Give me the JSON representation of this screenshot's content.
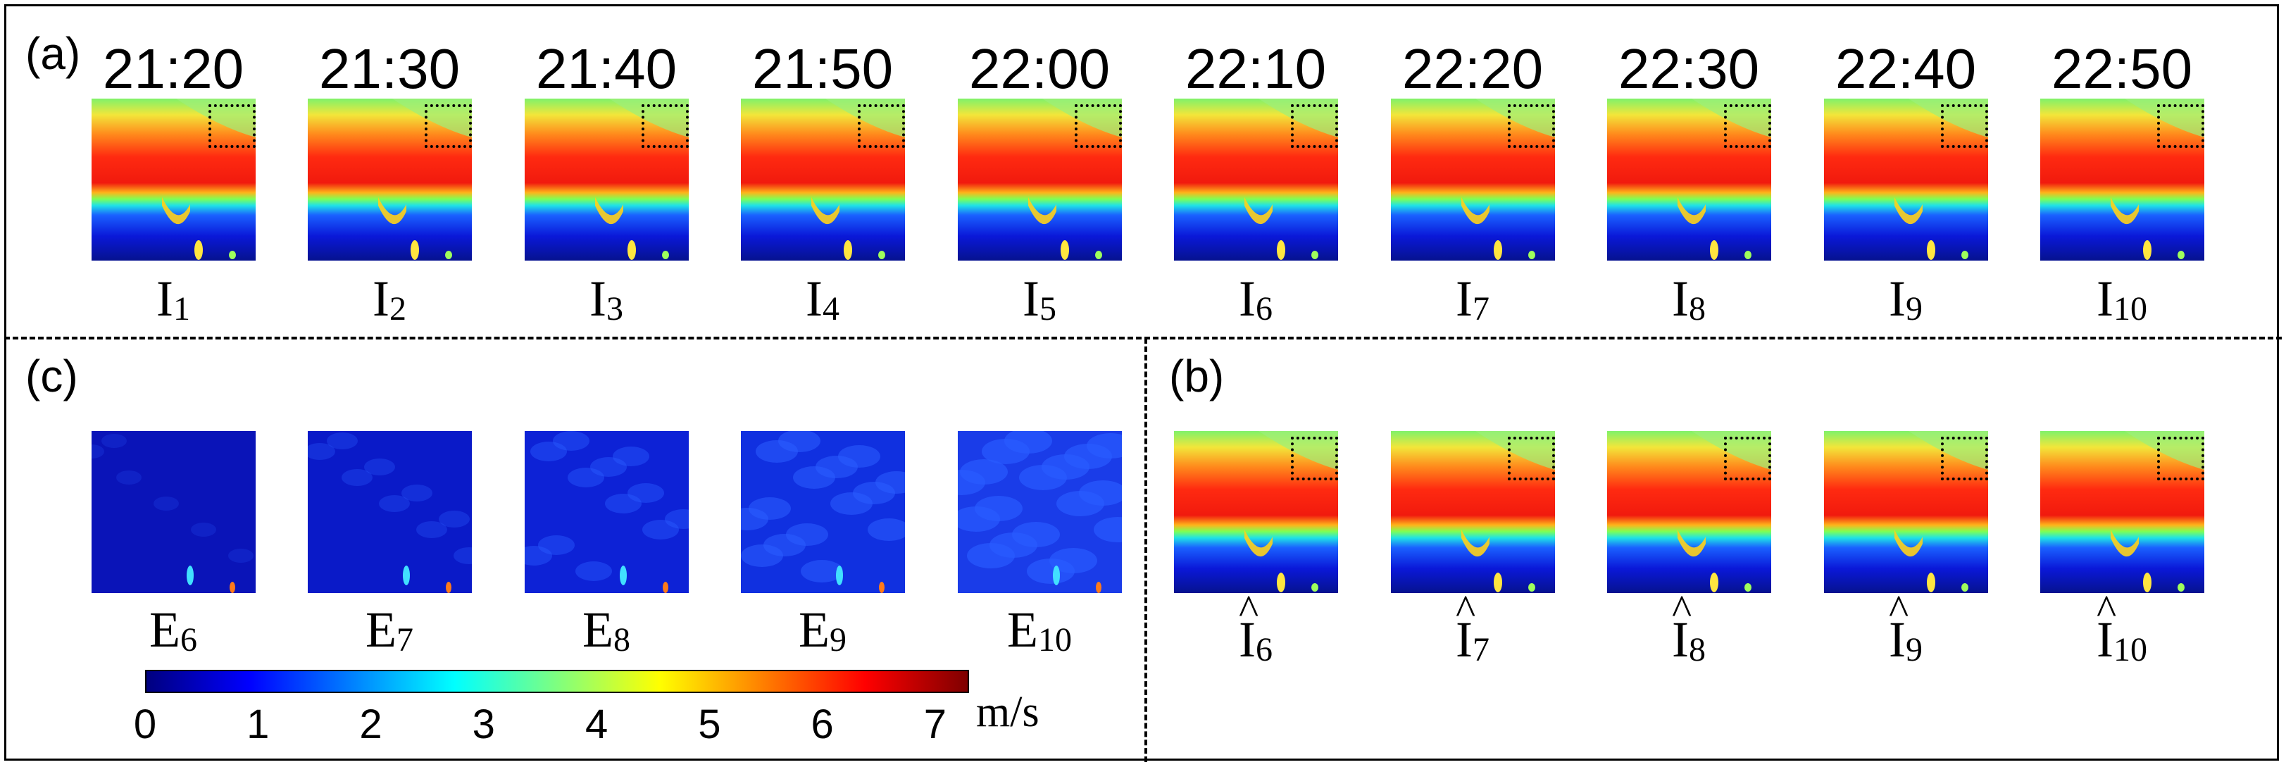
{
  "panels": {
    "a": "(a)",
    "b": "(b)",
    "c": "(c)"
  },
  "times": [
    "21:20",
    "21:30",
    "21:40",
    "21:50",
    "22:00",
    "22:10",
    "22:20",
    "22:30",
    "22:40",
    "22:50"
  ],
  "input_frames": [
    {
      "letter": "I",
      "index": "1"
    },
    {
      "letter": "I",
      "index": "2"
    },
    {
      "letter": "I",
      "index": "3"
    },
    {
      "letter": "I",
      "index": "4"
    },
    {
      "letter": "I",
      "index": "5"
    },
    {
      "letter": "I",
      "index": "6"
    },
    {
      "letter": "I",
      "index": "7"
    },
    {
      "letter": "I",
      "index": "8"
    },
    {
      "letter": "I",
      "index": "9"
    },
    {
      "letter": "I",
      "index": "10"
    }
  ],
  "error_frames": [
    {
      "letter": "E",
      "index": "6"
    },
    {
      "letter": "E",
      "index": "7"
    },
    {
      "letter": "E",
      "index": "8"
    },
    {
      "letter": "E",
      "index": "9"
    },
    {
      "letter": "E",
      "index": "10"
    }
  ],
  "predicted_frames": [
    {
      "letter": "I",
      "index": "6"
    },
    {
      "letter": "I",
      "index": "7"
    },
    {
      "letter": "I",
      "index": "8"
    },
    {
      "letter": "I",
      "index": "9"
    },
    {
      "letter": "I",
      "index": "10"
    }
  ],
  "colorbar": {
    "ticks": [
      "0",
      "1",
      "2",
      "3",
      "4",
      "5",
      "6",
      "7"
    ],
    "unit": "m/s",
    "min": 0,
    "max": 7.3,
    "colors": [
      "#00007f",
      "#0000ff",
      "#0080ff",
      "#00ffff",
      "#7fff7f",
      "#ffff00",
      "#ff8000",
      "#ff0000",
      "#7f0000"
    ]
  }
}
